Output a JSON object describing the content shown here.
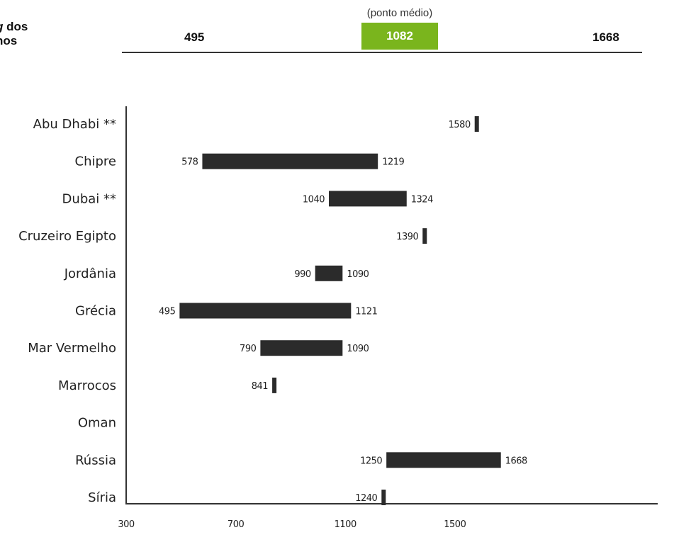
{
  "header": {
    "title_italic": "g",
    "title_rest": " dos",
    "title_line2": "nos",
    "scale_min": "495",
    "scale_mid_caption": "(ponto médio)",
    "scale_mid": "1082",
    "scale_max": "1668"
  },
  "colors": {
    "accent": "#7ab51d",
    "bar": "#2b2b2b"
  },
  "chart_data": {
    "type": "bar",
    "orientation": "horizontal-range",
    "categories": [
      "Abu Dhabi **",
      "Chipre",
      "Dubai **",
      "Cruzeiro Egipto",
      "Jordânia",
      "Grécia",
      "Mar Vermelho",
      "Marrocos",
      "Oman",
      "Rússia",
      "Síria"
    ],
    "series": [
      {
        "values": [
          [
            1580,
            1580
          ],
          [
            578,
            1219
          ],
          [
            1040,
            1324
          ],
          [
            1390,
            1390
          ],
          [
            990,
            1090
          ],
          [
            495,
            1121
          ],
          [
            790,
            1090
          ],
          [
            841,
            841
          ],
          null,
          [
            1250,
            1668
          ],
          [
            1240,
            1240
          ]
        ]
      }
    ],
    "xticks": [
      "300",
      "700",
      "1100",
      "1500"
    ],
    "xlim": [
      300,
      1700
    ],
    "grid": false
  }
}
